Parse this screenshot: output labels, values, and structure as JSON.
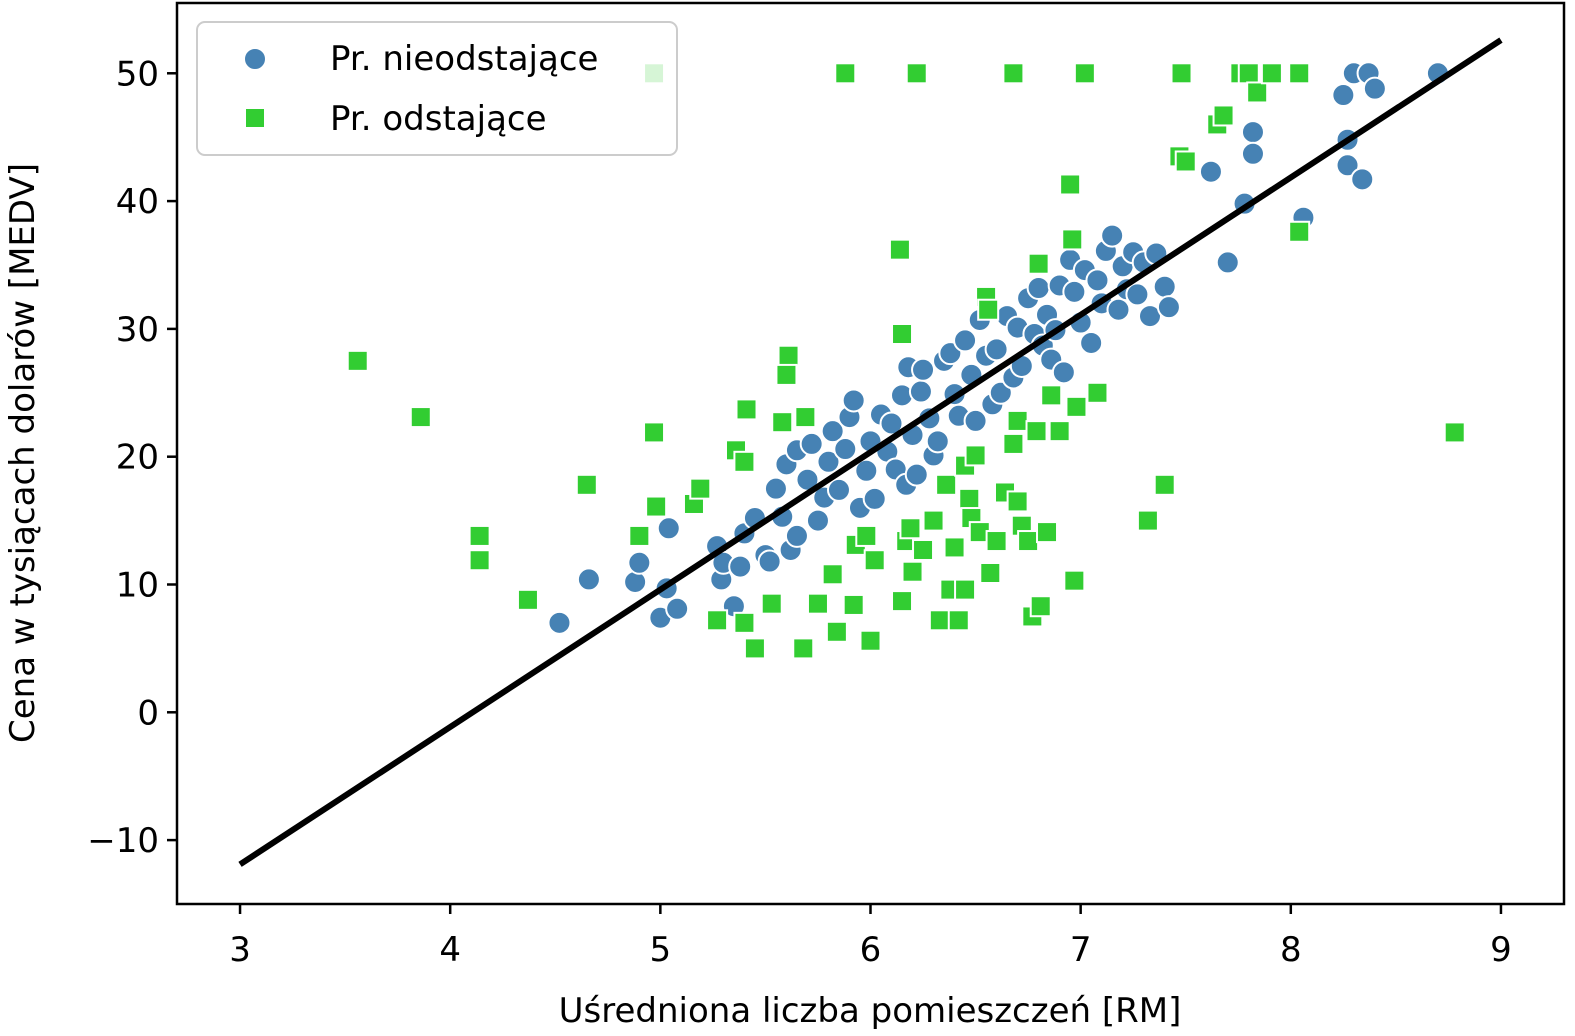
{
  "chart_data": {
    "type": "scatter",
    "xlabel": "Uśredniona liczba pomieszczeń [RM]",
    "ylabel": "Cena w tysiącach dolarów [MEDV]",
    "xlim": [
      2.7,
      9.3
    ],
    "ylim": [
      -15,
      55.5
    ],
    "x_ticks": [
      3,
      4,
      5,
      6,
      7,
      8,
      9
    ],
    "y_ticks": [
      -10,
      0,
      10,
      20,
      30,
      40,
      50
    ],
    "x_tick_labels": [
      "3",
      "4",
      "5",
      "6",
      "7",
      "8",
      "9"
    ],
    "y_tick_labels": [
      "−10",
      "0",
      "10",
      "20",
      "30",
      "40",
      "50"
    ],
    "grid": false,
    "legend_position": "top-left",
    "series": [
      {
        "name": "Pr. nieodstające",
        "marker": "circle",
        "color": "#4682b4",
        "points": [
          [
            4.52,
            7.0
          ],
          [
            4.66,
            10.4
          ],
          [
            4.88,
            10.2
          ],
          [
            4.9,
            11.7
          ],
          [
            5.0,
            7.4
          ],
          [
            5.03,
            9.7
          ],
          [
            5.08,
            8.1
          ],
          [
            5.04,
            14.4
          ],
          [
            5.27,
            13.0
          ],
          [
            5.29,
            10.4
          ],
          [
            5.3,
            11.7
          ],
          [
            5.35,
            8.3
          ],
          [
            5.38,
            11.4
          ],
          [
            5.4,
            14.0
          ],
          [
            5.45,
            15.2
          ],
          [
            5.5,
            12.3
          ],
          [
            5.52,
            11.8
          ],
          [
            5.55,
            17.5
          ],
          [
            5.58,
            15.3
          ],
          [
            5.62,
            12.7
          ],
          [
            5.65,
            13.8
          ],
          [
            5.6,
            19.4
          ],
          [
            5.65,
            20.5
          ],
          [
            5.7,
            18.2
          ],
          [
            5.72,
            21.0
          ],
          [
            5.75,
            15.0
          ],
          [
            5.78,
            16.8
          ],
          [
            5.8,
            19.6
          ],
          [
            5.82,
            22.0
          ],
          [
            5.85,
            17.4
          ],
          [
            5.88,
            20.6
          ],
          [
            5.9,
            23.1
          ],
          [
            5.92,
            24.4
          ],
          [
            5.95,
            16.0
          ],
          [
            5.98,
            18.9
          ],
          [
            6.0,
            21.2
          ],
          [
            6.02,
            16.7
          ],
          [
            6.05,
            23.3
          ],
          [
            6.08,
            20.4
          ],
          [
            6.1,
            22.6
          ],
          [
            6.12,
            19.0
          ],
          [
            6.15,
            24.8
          ],
          [
            6.17,
            17.8
          ],
          [
            6.18,
            27.0
          ],
          [
            6.2,
            21.7
          ],
          [
            6.22,
            18.6
          ],
          [
            6.24,
            25.1
          ],
          [
            6.25,
            26.8
          ],
          [
            6.28,
            23.0
          ],
          [
            6.3,
            20.1
          ],
          [
            6.32,
            21.2
          ],
          [
            6.35,
            27.5
          ],
          [
            6.38,
            28.1
          ],
          [
            6.4,
            24.9
          ],
          [
            6.42,
            23.2
          ],
          [
            6.45,
            29.1
          ],
          [
            6.48,
            26.4
          ],
          [
            6.5,
            22.8
          ],
          [
            6.52,
            30.7
          ],
          [
            6.55,
            27.9
          ],
          [
            6.58,
            24.1
          ],
          [
            6.6,
            28.4
          ],
          [
            6.62,
            25.0
          ],
          [
            6.65,
            31.0
          ],
          [
            6.68,
            26.2
          ],
          [
            6.7,
            30.1
          ],
          [
            6.72,
            27.1
          ],
          [
            6.75,
            32.4
          ],
          [
            6.78,
            29.6
          ],
          [
            6.8,
            33.2
          ],
          [
            6.82,
            28.7
          ],
          [
            6.84,
            31.1
          ],
          [
            6.86,
            27.6
          ],
          [
            6.88,
            29.9
          ],
          [
            6.9,
            33.4
          ],
          [
            6.92,
            26.6
          ],
          [
            6.95,
            35.4
          ],
          [
            6.97,
            32.9
          ],
          [
            7.0,
            30.5
          ],
          [
            7.02,
            34.6
          ],
          [
            7.05,
            28.9
          ],
          [
            7.08,
            33.8
          ],
          [
            7.1,
            32.0
          ],
          [
            7.12,
            36.1
          ],
          [
            7.15,
            37.3
          ],
          [
            7.18,
            31.5
          ],
          [
            7.2,
            34.9
          ],
          [
            7.22,
            33.1
          ],
          [
            7.25,
            36.0
          ],
          [
            7.27,
            32.7
          ],
          [
            7.3,
            35.2
          ],
          [
            7.33,
            31.0
          ],
          [
            7.36,
            35.9
          ],
          [
            7.4,
            33.3
          ],
          [
            7.42,
            31.7
          ],
          [
            7.62,
            42.3
          ],
          [
            7.7,
            35.2
          ],
          [
            7.78,
            39.8
          ],
          [
            7.82,
            45.4
          ],
          [
            7.82,
            43.7
          ],
          [
            8.06,
            38.7
          ],
          [
            8.25,
            48.3
          ],
          [
            8.27,
            44.8
          ],
          [
            8.27,
            42.8
          ],
          [
            8.3,
            50.0
          ],
          [
            8.34,
            41.7
          ],
          [
            8.37,
            50.0
          ],
          [
            8.4,
            48.8
          ],
          [
            8.7,
            50.0
          ]
        ]
      },
      {
        "name": "Pr. odstające",
        "marker": "square",
        "color": "#32cd32",
        "points": [
          [
            3.56,
            27.5
          ],
          [
            3.86,
            23.1
          ],
          [
            4.14,
            13.8
          ],
          [
            4.14,
            11.9
          ],
          [
            4.37,
            8.8
          ],
          [
            4.65,
            17.8
          ],
          [
            4.97,
            21.9
          ],
          [
            4.97,
            50.0
          ],
          [
            4.9,
            13.8
          ],
          [
            4.98,
            16.1
          ],
          [
            5.16,
            16.3
          ],
          [
            5.19,
            17.5
          ],
          [
            5.27,
            7.2
          ],
          [
            5.36,
            20.5
          ],
          [
            5.4,
            7.0
          ],
          [
            5.4,
            19.6
          ],
          [
            5.41,
            23.7
          ],
          [
            5.45,
            5.0
          ],
          [
            5.53,
            8.5
          ],
          [
            5.58,
            22.7
          ],
          [
            5.61,
            27.9
          ],
          [
            5.6,
            26.4
          ],
          [
            5.68,
            5.0
          ],
          [
            5.69,
            23.1
          ],
          [
            5.75,
            8.5
          ],
          [
            5.82,
            10.8
          ],
          [
            5.84,
            6.3
          ],
          [
            5.88,
            50.0
          ],
          [
            5.92,
            8.4
          ],
          [
            5.93,
            13.1
          ],
          [
            5.98,
            13.8
          ],
          [
            6.0,
            5.6
          ],
          [
            6.02,
            11.9
          ],
          [
            6.14,
            36.2
          ],
          [
            6.15,
            29.6
          ],
          [
            6.15,
            8.7
          ],
          [
            6.17,
            13.4
          ],
          [
            6.19,
            14.4
          ],
          [
            6.22,
            50.0
          ],
          [
            6.2,
            11.0
          ],
          [
            6.25,
            12.7
          ],
          [
            6.3,
            15.0
          ],
          [
            6.33,
            7.2
          ],
          [
            6.36,
            17.8
          ],
          [
            6.38,
            9.6
          ],
          [
            6.4,
            12.9
          ],
          [
            6.42,
            7.2
          ],
          [
            6.45,
            9.6
          ],
          [
            6.45,
            19.3
          ],
          [
            6.47,
            16.7
          ],
          [
            6.48,
            15.2
          ],
          [
            6.5,
            20.1
          ],
          [
            6.52,
            14.1
          ],
          [
            6.55,
            32.5
          ],
          [
            6.56,
            31.5
          ],
          [
            6.57,
            10.9
          ],
          [
            6.6,
            13.4
          ],
          [
            6.64,
            17.2
          ],
          [
            6.68,
            21.0
          ],
          [
            6.68,
            50.0
          ],
          [
            6.7,
            16.5
          ],
          [
            6.7,
            22.8
          ],
          [
            6.72,
            14.6
          ],
          [
            6.75,
            13.4
          ],
          [
            6.77,
            7.5
          ],
          [
            6.79,
            22.0
          ],
          [
            6.8,
            35.1
          ],
          [
            6.81,
            8.3
          ],
          [
            6.84,
            14.1
          ],
          [
            6.86,
            24.8
          ],
          [
            6.9,
            22.0
          ],
          [
            6.95,
            41.3
          ],
          [
            6.96,
            37.0
          ],
          [
            6.97,
            10.3
          ],
          [
            6.98,
            23.9
          ],
          [
            7.02,
            50.0
          ],
          [
            7.08,
            25.0
          ],
          [
            7.32,
            15.0
          ],
          [
            7.4,
            17.8
          ],
          [
            7.47,
            43.5
          ],
          [
            7.48,
            50.0
          ],
          [
            7.5,
            43.1
          ],
          [
            7.65,
            46.0
          ],
          [
            7.68,
            46.7
          ],
          [
            7.76,
            50.0
          ],
          [
            7.8,
            50.0
          ],
          [
            7.84,
            48.5
          ],
          [
            7.91,
            50.0
          ],
          [
            8.04,
            50.0
          ],
          [
            8.04,
            37.6
          ],
          [
            8.78,
            21.9
          ]
        ]
      }
    ],
    "regression_line": {
      "color": "#000000",
      "x": [
        3.0,
        9.0
      ],
      "y": [
        -11.9,
        52.6
      ]
    }
  }
}
